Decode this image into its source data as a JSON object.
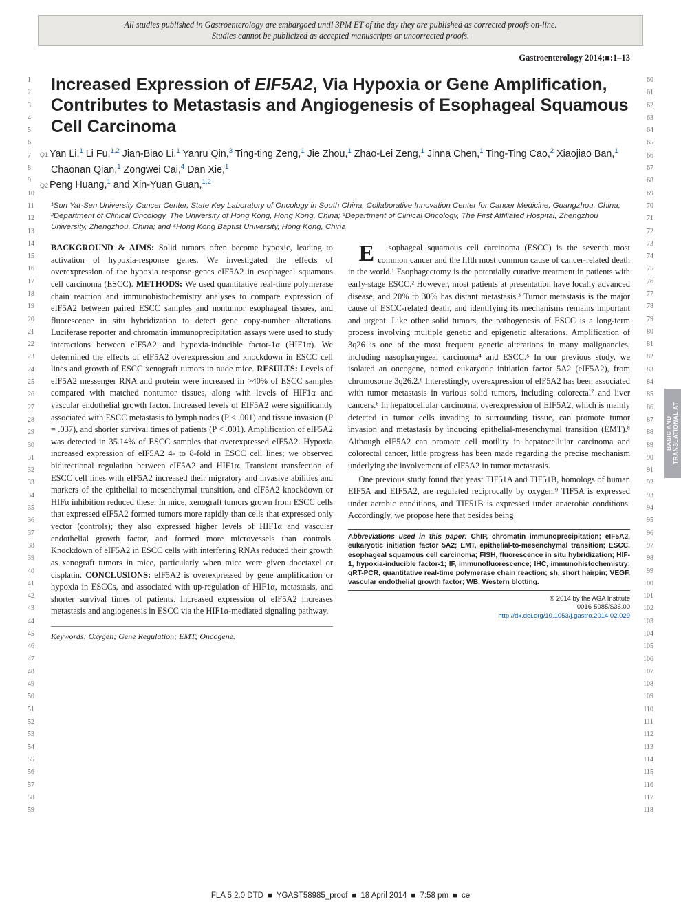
{
  "embargo": {
    "line1": "All studies published in Gastroenterology are embargoed until 3PM ET of the day they are published as corrected proofs on-line.",
    "line2": "Studies cannot be publicized as accepted manuscripts or uncorrected proofs."
  },
  "journal_ref": "Gastroenterology 2014;■:1–13",
  "title_parts": {
    "pre": "Increased Expression of ",
    "gene": "EIF5A2",
    "post": ", Via Hypoxia or Gene Amplification, Contributes to Metastasis and Angiogenesis of Esophageal Squamous Cell Carcinoma"
  },
  "author_tags": {
    "q1": "Q1",
    "q2": "Q2"
  },
  "authors": [
    {
      "name": "Yan Li",
      "aff": "1"
    },
    {
      "name": "Li Fu",
      "aff": "1,2"
    },
    {
      "name": "Jian-Biao Li",
      "aff": "1"
    },
    {
      "name": "Yanru Qin",
      "aff": "3"
    },
    {
      "name": "Ting-ting Zeng",
      "aff": "1"
    },
    {
      "name": "Jie Zhou",
      "aff": "1"
    },
    {
      "name": "Zhao-Lei Zeng",
      "aff": "1"
    },
    {
      "name": "Jinna Chen",
      "aff": "1"
    },
    {
      "name": "Ting-Ting Cao",
      "aff": "2"
    },
    {
      "name": "Xiaojiao Ban",
      "aff": "1"
    },
    {
      "name": "Chaonan Qian",
      "aff": "1"
    },
    {
      "name": "Zongwei Cai",
      "aff": "4"
    },
    {
      "name": "Dan Xie",
      "aff": "1"
    },
    {
      "name": "Peng Huang",
      "aff": "1"
    },
    {
      "name": "Xin-Yuan Guan",
      "aff": "1,2"
    }
  ],
  "affiliations": "¹Sun Yat-Sen University Cancer Center, State Key Laboratory of Oncology in South China, Collaborative Innovation Center for Cancer Medicine, Guangzhou, China; ²Department of Clinical Oncology, The University of Hong Kong, Hong Kong, China; ³Department of Clinical Oncology, The First Affiliated Hospital, Zhengzhou University, Zhengzhou, China; and ⁴Hong Kong Baptist University, Hong Kong, China",
  "abstract": {
    "background_head": "BACKGROUND & AIMS:",
    "background_text": " Solid tumors often become hypoxic, leading to activation of hypoxia-response genes. We investigated the effects of overexpression of the hypoxia response genes eIF5A2 in esophageal squamous cell carcinoma (ESCC). ",
    "methods_head": "METHODS:",
    "methods_text": " We used quantitative real-time polymerase chain reaction and immunohistochemistry analyses to compare expression of eIF5A2 between paired ESCC samples and nontumor esophageal tissues, and fluorescence in situ hybridization to detect gene copy-number alterations. Luciferase reporter and chromatin immunoprecipitation assays were used to study interactions between eIF5A2 and hypoxia-inducible factor-1α (HIF1α). We determined the effects of eIF5A2 overexpression and knockdown in ESCC cell lines and growth of ESCC xenograft tumors in nude mice. ",
    "results_head": "RESULTS:",
    "results_text": " Levels of eIF5A2 messenger RNA and protein were increased in >40% of ESCC samples compared with matched nontumor tissues, along with levels of HIF1α and vascular endothelial growth factor. Increased levels of EIF5A2 were significantly associated with ESCC metastasis to lymph nodes (P < .001) and tissue invasion (P = .037), and shorter survival times of patients (P < .001). Amplification of eIF5A2 was detected in 35.14% of ESCC samples that overexpressed eIF5A2. Hypoxia increased expression of eIF5A2 4- to 8-fold in ESCC cell lines; we observed bidirectional regulation between eIF5A2 and HIF1α. Transient transfection of ESCC cell lines with eIF5A2 increased their migratory and invasive abilities and markers of the epithelial to mesenchymal transition, and eIF5A2 knockdown or HIFα inhibition reduced these. In mice, xenograft tumors grown from ESCC cells that expressed eIF5A2 formed tumors more rapidly than cells that expressed only vector (controls); they also expressed higher levels of HIF1α and vascular endothelial growth factor, and formed more microvessels than controls. Knockdown of eIF5A2 in ESCC cells with interfering RNAs reduced their growth as xenograft tumors in mice, particularly when mice were given docetaxel or cisplatin. ",
    "conclusions_head": "CONCLUSIONS:",
    "conclusions_text": " eIF5A2 is overexpressed by gene amplification or hypoxia in ESCCs, and associated with up-regulation of HIF1α, metastasis, and shorter survival times of patients. Increased expression of eIF5A2 increases metastasis and angiogenesis in ESCC via the HIF1α-mediated signaling pathway."
  },
  "keywords_label": "Keywords:",
  "keywords_text": " Oxygen; Gene Regulation; EMT; Oncogene.",
  "body": {
    "p1_dropcap": "E",
    "p1": "sophageal squamous cell carcinoma (ESCC) is the seventh most common cancer and the fifth most common cause of cancer-related death in the world.¹ Esophagectomy is the potentially curative treatment in patients with early-stage ESCC.² However, most patients at presentation have locally advanced disease, and 20% to 30% has distant metastasis.³ Tumor metastasis is the major cause of ESCC-related death, and identifying its mechanisms remains important and urgent. Like other solid tumors, the pathogenesis of ESCC is a long-term process involving multiple genetic and epigenetic alterations. Amplification of 3q26 is one of the most frequent genetic alterations in many malignancies, including nasopharyngeal carcinoma⁴ and ESCC.⁵ In our previous study, we isolated an oncogene, named eukaryotic initiation factor 5A2 (eIF5A2), from chromosome 3q26.2.⁶ Interestingly, overexpression of eIF5A2 has been associated with tumor metastasis in various solid tumors, including colorectal⁷ and liver cancers.⁸ In hepatocellular carcinoma, overexpression of EIF5A2, which is mainly detected in tumor cells invading to surrounding tissue, can promote tumor invasion and metastasis by inducing epithelial-mesenchymal transition (EMT).⁸ Although eIF5A2 can promote cell motility in hepatocellular carcinoma and colorectal cancer, little progress has been made regarding the precise mechanism underlying the involvement of eIF5A2 in tumor metastasis.",
    "p2": "One previous study found that yeast TIF51A and TIF51B, homologs of human EIF5A and EIF5A2, are regulated reciprocally by oxygen.⁹ TIF5A is expressed under aerobic conditions, and TIF51B is expressed under anaerobic conditions. Accordingly, we propose here that besides being"
  },
  "abbrev": {
    "label": "Abbreviations used in this paper:",
    "text": " ChIP, chromatin immunoprecipitation; eIF5A2, eukaryotic initiation factor 5A2; EMT, epithelial-to-mesenchymal transition; ESCC, esophageal squamous cell carcinoma; FISH, fluorescence in situ hybridization; HIF-1, hypoxia-inducible factor-1; IF, immunofluorescence; IHC, immunohistochemistry; qRT-PCR, quantitative real-time polymerase chain reaction; sh, short hairpin; VEGF, vascular endothelial growth factor; WB, Western blotting."
  },
  "copyright": {
    "line1": "© 2014 by the AGA Institute",
    "line2": "0016-5085/$36.00",
    "doi": "http://dx.doi.org/10.1053/j.gastro.2014.02.029"
  },
  "sidetab": "BASIC AND TRANSLATIONAL AT",
  "footer": {
    "l1": "FLA 5.2.0 DTD",
    "l2": "YGAST58985_proof",
    "l3": "18 April 2014",
    "l4": "7:58 pm",
    "l5": "ce"
  },
  "line_numbers": {
    "left_start": 1,
    "left_end": 59,
    "right_start": 60,
    "right_end": 118
  },
  "colors": {
    "link": "#0b57a4",
    "embargo_bg": "#e8e7e4",
    "sidetab_bg": "#a9a9b0",
    "text": "#231f20"
  }
}
